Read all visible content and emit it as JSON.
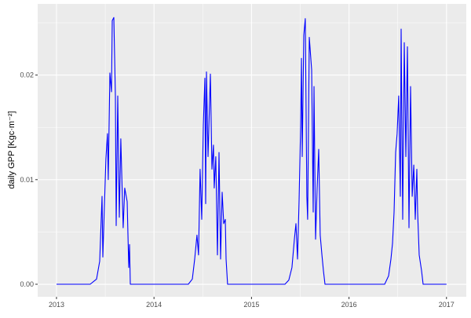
{
  "chart_data": {
    "type": "line",
    "title": "",
    "xlabel": "",
    "ylabel": "daily GPP [Kgc·m⁻²]",
    "xlim": [
      2012.807,
      2017.203
    ],
    "ylim": [
      -0.0012,
      0.0268
    ],
    "x_ticks": [
      2013,
      2014,
      2015,
      2016,
      2017
    ],
    "x_tick_labels": [
      "2013",
      "2014",
      "2015",
      "2016",
      "2017"
    ],
    "y_ticks": [
      0,
      0.01,
      0.02
    ],
    "y_tick_labels": [
      "0.00",
      "0.01",
      "0.02"
    ],
    "grid": true,
    "background": "#EBEBEB",
    "series": [
      {
        "color": "#0000FF",
        "points": [
          [
            2013.0,
            0
          ],
          [
            2013.346,
            0
          ],
          [
            2013.411,
            0.0005
          ],
          [
            2013.443,
            0.0022
          ],
          [
            2013.467,
            0.0084
          ],
          [
            2013.475,
            0.0026
          ],
          [
            2013.507,
            0.012
          ],
          [
            2013.523,
            0.0144
          ],
          [
            2013.531,
            0.01
          ],
          [
            2013.548,
            0.0202
          ],
          [
            2013.564,
            0.0184
          ],
          [
            2013.572,
            0.0252
          ],
          [
            2013.588,
            0.0255
          ],
          [
            2013.604,
            0.018
          ],
          [
            2013.612,
            0.0056
          ],
          [
            2013.628,
            0.018
          ],
          [
            2013.644,
            0.0064
          ],
          [
            2013.66,
            0.0139
          ],
          [
            2013.684,
            0.0054
          ],
          [
            2013.7,
            0.0092
          ],
          [
            2013.725,
            0.0079
          ],
          [
            2013.741,
            0.0016
          ],
          [
            2013.749,
            0.0038
          ],
          [
            2013.757,
            0
          ],
          [
            2014.352,
            0
          ],
          [
            2014.393,
            0.0005
          ],
          [
            2014.417,
            0.0024
          ],
          [
            2014.441,
            0.0047
          ],
          [
            2014.457,
            0.0028
          ],
          [
            2014.473,
            0.011
          ],
          [
            2014.49,
            0.0062
          ],
          [
            2014.506,
            0.0152
          ],
          [
            2014.522,
            0.0197
          ],
          [
            2014.53,
            0.0077
          ],
          [
            2014.538,
            0.0203
          ],
          [
            2014.554,
            0.0122
          ],
          [
            2014.578,
            0.0201
          ],
          [
            2014.594,
            0.011
          ],
          [
            2014.61,
            0.0133
          ],
          [
            2014.618,
            0.0092
          ],
          [
            2014.634,
            0.0122
          ],
          [
            2014.651,
            0.0028
          ],
          [
            2014.667,
            0.0126
          ],
          [
            2014.683,
            0.0024
          ],
          [
            2014.699,
            0.0088
          ],
          [
            2014.715,
            0.0058
          ],
          [
            2014.731,
            0.0062
          ],
          [
            2014.739,
            0.0024
          ],
          [
            2014.755,
            0
          ],
          [
            2015.343,
            0
          ],
          [
            2015.383,
            0.0004
          ],
          [
            2015.415,
            0.0016
          ],
          [
            2015.44,
            0.0043
          ],
          [
            2015.456,
            0.0058
          ],
          [
            2015.472,
            0.0024
          ],
          [
            2015.488,
            0.008
          ],
          [
            2015.504,
            0.0152
          ],
          [
            2015.512,
            0.0216
          ],
          [
            2015.52,
            0.0122
          ],
          [
            2015.536,
            0.0238
          ],
          [
            2015.552,
            0.0254
          ],
          [
            2015.568,
            0.0084
          ],
          [
            2015.576,
            0.0062
          ],
          [
            2015.593,
            0.0236
          ],
          [
            2015.617,
            0.0205
          ],
          [
            2015.633,
            0.0069
          ],
          [
            2015.641,
            0.0189
          ],
          [
            2015.657,
            0.0043
          ],
          [
            2015.673,
            0.0092
          ],
          [
            2015.689,
            0.0129
          ],
          [
            2015.705,
            0.0047
          ],
          [
            2015.722,
            0.0028
          ],
          [
            2015.738,
            0.0013
          ],
          [
            2015.754,
            0
          ],
          [
            2016.366,
            0
          ],
          [
            2016.406,
            0.0008
          ],
          [
            2016.43,
            0.0024
          ],
          [
            2016.446,
            0.0039
          ],
          [
            2016.462,
            0.0069
          ],
          [
            2016.478,
            0.0126
          ],
          [
            2016.494,
            0.0144
          ],
          [
            2016.51,
            0.018
          ],
          [
            2016.527,
            0.0084
          ],
          [
            2016.535,
            0.0244
          ],
          [
            2016.551,
            0.0062
          ],
          [
            2016.567,
            0.0231
          ],
          [
            2016.583,
            0.0122
          ],
          [
            2016.599,
            0.0227
          ],
          [
            2016.615,
            0.0054
          ],
          [
            2016.631,
            0.0189
          ],
          [
            2016.648,
            0.0084
          ],
          [
            2016.664,
            0.0114
          ],
          [
            2016.68,
            0.0062
          ],
          [
            2016.696,
            0.011
          ],
          [
            2016.704,
            0.0069
          ],
          [
            2016.72,
            0.0028
          ],
          [
            2016.744,
            0.0013
          ],
          [
            2016.76,
            0
          ],
          [
            2017.0,
            0
          ]
        ]
      }
    ]
  }
}
